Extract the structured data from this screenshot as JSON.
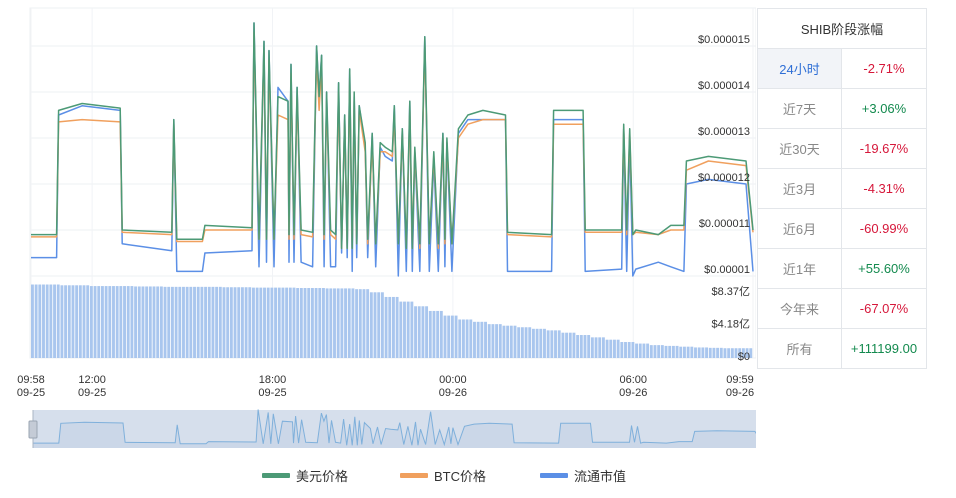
{
  "colors": {
    "usd": "#4c9a76",
    "btc": "#f0a05e",
    "cap": "#5b8fe6",
    "volume": "#a9c6ee",
    "navigator_fill": "#d6dfec",
    "navigator_line": "#7fb0db"
  },
  "chart_data": {
    "type": "line",
    "y_axis": {
      "ticks": [
        "$0.000015",
        "$0.000014",
        "$0.000013",
        "$0.000012",
        "$0.000011",
        "$0.00001"
      ],
      "tick_values": [
        1.5e-05,
        1.4e-05,
        1.3e-05,
        1.2e-05,
        1.1e-05,
        1e-05
      ],
      "ylim": [
        1e-05,
        1.57e-05
      ],
      "position": "right"
    },
    "volume_axis": {
      "ticks": [
        "$8.37亿",
        "$4.18亿",
        "$0"
      ],
      "tick_values": [
        8.37,
        4.18,
        0
      ]
    },
    "x_axis": {
      "ticks": [
        {
          "time": "09-25 09:58",
          "line1": "09:58",
          "line2": "09-25"
        },
        {
          "time": "09-25 12:00",
          "line1": "12:00",
          "line2": "09-25"
        },
        {
          "time": "09-25 18:00",
          "line1": "18:00",
          "line2": "09-25"
        },
        {
          "time": "09-26 00:00",
          "line1": "00:00",
          "line2": "09-26"
        },
        {
          "time": "09-26 06:00",
          "line1": "06:00",
          "line2": "09-26"
        },
        {
          "time": "09-26 09:59",
          "line1": "09:59",
          "line2": "09-26"
        }
      ],
      "range": [
        "09-25 09:58",
        "09-26 09:59"
      ]
    },
    "grid": true,
    "legend_position": "bottom",
    "series_names": [
      "美元价格",
      "BTC价格",
      "流通市值"
    ],
    "points": [
      [
        "09-25 09:58",
        1.09e-05,
        1.085e-05,
        1.04e-05
      ],
      [
        "09-25 10:49",
        1.09e-05,
        1.085e-05,
        1.04e-05
      ],
      [
        "09-25 10:53",
        1.36e-05,
        1.335e-05,
        1.35e-05
      ],
      [
        "09-25 11:40",
        1.375e-05,
        1.34e-05,
        1.37e-05
      ],
      [
        "09-25 12:56",
        1.365e-05,
        1.335e-05,
        1.36e-05
      ],
      [
        "09-25 13:00",
        1.1e-05,
        1.095e-05,
        1.07e-05
      ],
      [
        "09-25 14:39",
        1.095e-05,
        1.09e-05,
        1.055e-05
      ],
      [
        "09-25 14:43",
        1.34e-05,
        1.33e-05,
        1.34e-05
      ],
      [
        "09-25 14:49",
        1.08e-05,
        1.075e-05,
        1.01e-05
      ],
      [
        "09-25 15:40",
        1.08e-05,
        1.075e-05,
        1.01e-05
      ],
      [
        "09-25 15:45",
        1.11e-05,
        1.1e-05,
        1.05e-05
      ],
      [
        "09-25 17:19",
        1.105e-05,
        1.1e-05,
        1.055e-05
      ],
      [
        "09-25 17:23",
        1.55e-05,
        1.53e-05,
        1.55e-05
      ],
      [
        "09-25 17:33",
        1.08e-05,
        1.08e-05,
        1.02e-05
      ],
      [
        "09-25 17:43",
        1.51e-05,
        1.49e-05,
        1.51e-05
      ],
      [
        "09-25 17:48",
        1.08e-05,
        1.08e-05,
        1.03e-05
      ],
      [
        "09-25 17:53",
        1.49e-05,
        1.47e-05,
        1.49e-05
      ],
      [
        "09-25 18:03",
        1.08e-05,
        1.08e-05,
        1.02e-05
      ],
      [
        "09-25 18:11",
        1.39e-05,
        1.35e-05,
        1.41e-05
      ],
      [
        "09-25 18:31",
        1.38e-05,
        1.34e-05,
        1.38e-05
      ],
      [
        "09-25 18:33",
        1.09e-05,
        1.08e-05,
        1.03e-05
      ],
      [
        "09-25 18:37",
        1.46e-05,
        1.44e-05,
        1.46e-05
      ],
      [
        "09-25 18:43",
        1.09e-05,
        1.08e-05,
        1.03e-05
      ],
      [
        "09-25 18:49",
        1.41e-05,
        1.39e-05,
        1.41e-05
      ],
      [
        "09-25 18:57",
        1.1e-05,
        1.09e-05,
        1.03e-05
      ],
      [
        "09-25 19:20",
        1.095e-05,
        1.085e-05,
        1.02e-05
      ],
      [
        "09-25 19:28",
        1.5e-05,
        1.48e-05,
        1.5e-05
      ],
      [
        "09-25 19:33",
        1.39e-05,
        1.36e-05,
        1.39e-05
      ],
      [
        "09-25 19:38",
        1.48e-05,
        1.46e-05,
        1.48e-05
      ],
      [
        "09-25 19:43",
        1.09e-05,
        1.08e-05,
        1.02e-05
      ],
      [
        "09-25 19:48",
        1.4e-05,
        1.38e-05,
        1.4e-05
      ],
      [
        "09-25 19:56",
        1.1e-05,
        1.09e-05,
        1.02e-05
      ],
      [
        "09-25 20:06",
        1.09e-05,
        1.08e-05,
        1.02e-05
      ],
      [
        "09-25 20:12",
        1.42e-05,
        1.4e-05,
        1.42e-05
      ],
      [
        "09-25 20:18",
        1.06e-05,
        1.06e-05,
        1.05e-05
      ],
      [
        "09-25 20:24",
        1.35e-05,
        1.34e-05,
        1.35e-05
      ],
      [
        "09-25 20:29",
        1.06e-05,
        1.06e-05,
        1.04e-05
      ],
      [
        "09-25 20:34",
        1.45e-05,
        1.43e-05,
        1.45e-05
      ],
      [
        "09-25 20:39",
        1.06e-05,
        1.06e-05,
        1.01e-05
      ],
      [
        "09-25 20:43",
        1.4e-05,
        1.38e-05,
        1.39e-05
      ],
      [
        "09-25 20:48",
        1.07e-05,
        1.07e-05,
        1.04e-05
      ],
      [
        "09-25 20:53",
        1.37e-05,
        1.36e-05,
        1.37e-05
      ],
      [
        "09-25 21:05",
        1.29e-05,
        1.27e-05,
        1.28e-05
      ],
      [
        "09-25 21:10",
        1.08e-05,
        1.07e-05,
        1.04e-05
      ],
      [
        "09-25 21:19",
        1.31e-05,
        1.29e-05,
        1.31e-05
      ],
      [
        "09-25 21:26",
        1.07e-05,
        1.07e-05,
        1.02e-05
      ],
      [
        "09-25 21:35",
        1.29e-05,
        1.27e-05,
        1.28e-05
      ],
      [
        "09-25 21:45",
        1.28e-05,
        1.27e-05,
        1.26e-05
      ],
      [
        "09-25 21:59",
        1.27e-05,
        1.26e-05,
        1.25e-05
      ],
      [
        "09-25 22:03",
        1.37e-05,
        1.35e-05,
        1.37e-05
      ],
      [
        "09-25 22:11",
        1.07e-05,
        1.07e-05,
        1e-05
      ],
      [
        "09-25 22:19",
        1.32e-05,
        1.31e-05,
        1.32e-05
      ],
      [
        "09-25 22:27",
        1.06e-05,
        1.06e-05,
        1.01e-05
      ],
      [
        "09-25 22:34",
        1.38e-05,
        1.36e-05,
        1.38e-05
      ],
      [
        "09-25 22:39",
        1.06e-05,
        1.06e-05,
        1.01e-05
      ],
      [
        "09-25 22:44",
        1.28e-05,
        1.27e-05,
        1.27e-05
      ],
      [
        "09-25 22:54",
        1.07e-05,
        1.06e-05,
        1.01e-05
      ],
      [
        "09-25 23:04",
        1.52e-05,
        1.5e-05,
        1.52e-05
      ],
      [
        "09-25 23:13",
        1.07e-05,
        1.07e-05,
        1.01e-05
      ],
      [
        "09-25 23:22",
        1.27e-05,
        1.26e-05,
        1.25e-05
      ],
      [
        "09-25 23:31",
        1.07e-05,
        1.06e-05,
        1.01e-05
      ],
      [
        "09-25 23:40",
        1.31e-05,
        1.3e-05,
        1.31e-05
      ],
      [
        "09-25 23:44",
        1.08e-05,
        1.07e-05,
        1.02e-05
      ],
      [
        "09-25 23:48",
        1.3e-05,
        1.29e-05,
        1.29e-05
      ],
      [
        "09-25 23:58",
        1.07e-05,
        1.07e-05,
        1.01e-05
      ],
      [
        "09-26 00:11",
        1.32e-05,
        1.3e-05,
        1.31e-05
      ],
      [
        "09-26 00:30",
        1.35e-05,
        1.33e-05,
        1.34e-05
      ],
      [
        "09-26 01:00",
        1.36e-05,
        1.34e-05,
        1.34e-05
      ],
      [
        "09-26 01:45",
        1.35e-05,
        1.34e-05,
        1.34e-05
      ],
      [
        "09-26 01:49",
        1.095e-05,
        1.09e-05,
        1.01e-05
      ],
      [
        "09-26 03:17",
        1.09e-05,
        1.085e-05,
        1.01e-05
      ],
      [
        "09-26 03:21",
        1.36e-05,
        1.33e-05,
        1.34e-05
      ],
      [
        "09-26 04:20",
        1.36e-05,
        1.33e-05,
        1.34e-05
      ],
      [
        "09-26 04:24",
        1.1e-05,
        1.095e-05,
        1.01e-05
      ],
      [
        "09-26 05:37",
        1.1e-05,
        1.095e-05,
        1.015e-05
      ],
      [
        "09-26 05:41",
        1.33e-05,
        1.32e-05,
        1.32e-05
      ],
      [
        "09-26 05:47",
        1.1e-05,
        1.09e-05,
        1.01e-05
      ],
      [
        "09-26 05:53",
        1.32e-05,
        1.31e-05,
        1.3e-05
      ],
      [
        "09-26 05:59",
        1.09e-05,
        1.09e-05,
        1e-05
      ],
      [
        "09-26 06:05",
        1.1e-05,
        1.095e-05,
        1.015e-05
      ],
      [
        "09-26 06:50",
        1.09e-05,
        1.09e-05,
        1.03e-05
      ],
      [
        "09-26 07:15",
        1.11e-05,
        1.1e-05,
        1.02e-05
      ],
      [
        "09-26 07:41",
        1.11e-05,
        1.1e-05,
        1.01e-05
      ],
      [
        "09-26 07:46",
        1.25e-05,
        1.23e-05,
        1.2e-05
      ],
      [
        "09-26 08:30",
        1.26e-05,
        1.25e-05,
        1.21e-05
      ],
      [
        "09-26 09:45",
        1.25e-05,
        1.24e-05,
        1.2e-05
      ],
      [
        "09-26 09:59",
        1.1e-05,
        1.095e-05,
        1.01e-05
      ]
    ],
    "volume_yi": [
      9.2,
      9.2,
      9.1,
      9.1,
      9.0,
      9.0,
      9.0,
      8.95,
      8.95,
      8.9,
      8.9,
      8.9,
      8.9,
      8.85,
      8.85,
      8.8,
      8.8,
      8.8,
      8.75,
      8.75,
      8.7,
      8.7,
      8.6,
      8.2,
      7.6,
      7.0,
      6.4,
      5.8,
      5.2,
      4.7,
      4.4,
      4.1,
      3.9,
      3.7,
      3.5,
      3.3,
      3.0,
      2.7,
      2.4,
      2.1,
      1.8,
      1.6,
      1.4,
      1.3,
      1.2,
      1.1,
      1.05,
      1.0,
      1.0
    ]
  },
  "table": {
    "title": "SHIB阶段涨幅",
    "rows": [
      {
        "label": "24小时",
        "value": "-2.71%",
        "trend": "neg",
        "active": true
      },
      {
        "label": "近7天",
        "value": "+3.06%",
        "trend": "pos"
      },
      {
        "label": "近30天",
        "value": "-19.67%",
        "trend": "neg"
      },
      {
        "label": "近3月",
        "value": "-4.31%",
        "trend": "neg"
      },
      {
        "label": "近6月",
        "value": "-60.99%",
        "trend": "neg"
      },
      {
        "label": "近1年",
        "value": "+55.60%",
        "trend": "pos"
      },
      {
        "label": "今年来",
        "value": "-67.07%",
        "trend": "neg"
      },
      {
        "label": "所有",
        "value": "+111199.00",
        "trend": "pos"
      }
    ]
  },
  "legend": {
    "usd": "美元价格",
    "btc": "BTC价格",
    "cap": "流通市值"
  }
}
